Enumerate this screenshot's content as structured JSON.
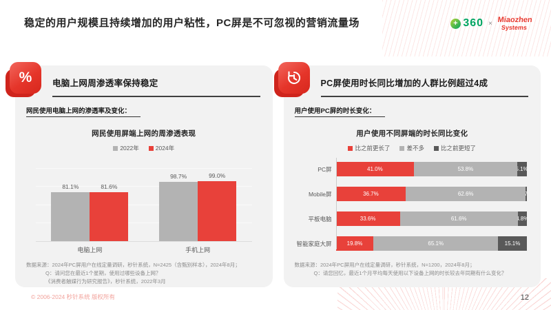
{
  "header": {
    "title": "稳定的用户规模且持续增加的用户粘性，PC屏是不可忽视的营销流量场",
    "brand": {
      "logo_360_text": "360",
      "logo_360_plus": "+",
      "separator": "×",
      "miaozhen_line1": "Miaozhen",
      "miaozhen_line2": "Systems",
      "accent_green": "#00a562",
      "accent_red": "#e8392f"
    }
  },
  "left_panel": {
    "icon": "percent-icon",
    "icon_glyph": "%",
    "title": "电脑上网周渗透率保持稳定",
    "subtitle": "网民使用电脑上网的渗透率及变化：",
    "sources": [
      "数据来源：2024年PC屏用户在线定量调研，秒针系统，N=2425（含甄别样本），2024年8月；",
      "Q：请问您在最近1个星期，使用过哪些设备上网？",
      "《消费者触媒行为研究报告》，秒针系统，2022年3月"
    ]
  },
  "right_panel": {
    "icon": "clock-history-icon",
    "title": "PC屏使用时长同比增加的人群比例超过4成",
    "subtitle": "用户使用PC屏的时长变化：",
    "sources": [
      "数据来源：2024年PC屏用户在线定量调研，秒针系统，N=1200，2024年8月；",
      "Q：请您回忆，最近1个月平均每天使用以下设备上网的时长较去年同期有什么变化？"
    ]
  },
  "chart_data": [
    {
      "type": "bar",
      "title": "网民使用屏端上网的周渗透表现",
      "categories": [
        "电脑上网",
        "手机上网"
      ],
      "series": [
        {
          "name": "2022年",
          "color": "#b3b3b3",
          "values": [
            81.1,
            98.7
          ]
        },
        {
          "name": "2024年",
          "color": "#e8413a",
          "values": [
            81.6,
            99.0
          ]
        }
      ],
      "ylim": [
        0,
        120
      ],
      "value_suffix": "%",
      "legend_position": "top",
      "grid": true
    },
    {
      "type": "bar-horizontal-stacked",
      "title": "用户使用不同屏端的时长同比变化",
      "categories": [
        "PC屏",
        "Mobile屏",
        "平板电脑",
        "智能家庭大屏"
      ],
      "series": [
        {
          "name": "比之前更长了",
          "color": "#e8413a",
          "values": [
            41.0,
            36.7,
            33.6,
            19.8
          ]
        },
        {
          "name": "差不多",
          "color": "#b3b3b3",
          "values": [
            53.8,
            62.6,
            61.6,
            65.1
          ]
        },
        {
          "name": "比之前更短了",
          "color": "#595959",
          "values": [
            5.1,
            0.7,
            4.8,
            15.1
          ]
        }
      ],
      "xlim": [
        0,
        100
      ],
      "value_suffix": "%",
      "legend_position": "top"
    }
  ],
  "footer": {
    "copyright": "© 2006-2024 秒针系统 版权所有",
    "page_number": "12"
  },
  "colors": {
    "accent_red": "#e8413a",
    "panel_bg": "#f2f2f2",
    "gray_series": "#b3b3b3",
    "dark_series": "#595959"
  }
}
